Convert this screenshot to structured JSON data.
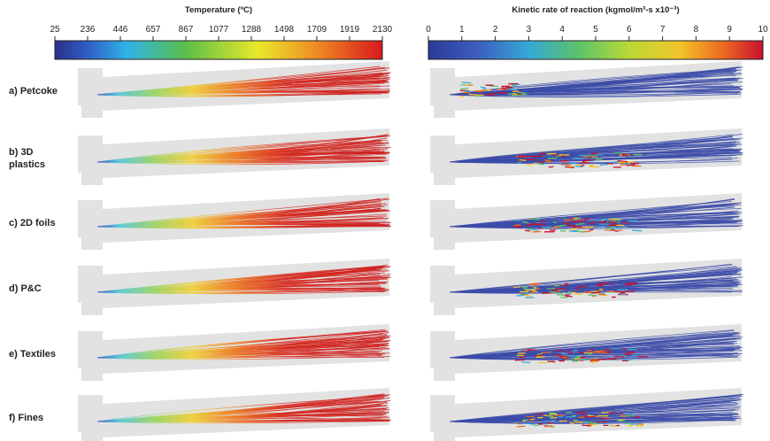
{
  "colorbars": [
    {
      "title": "Temperature (ºC)",
      "ticks": [
        "25",
        "236",
        "446",
        "657",
        "867",
        "1077",
        "1288",
        "1498",
        "1709",
        "1919",
        "2130"
      ]
    },
    {
      "title": "Kinetic rate of reaction (kgmol/m³-s x10⁻³)",
      "ticks": [
        "0",
        "1",
        "2",
        "3",
        "4",
        "5",
        "6",
        "7",
        "8",
        "9",
        "10"
      ]
    }
  ],
  "rows": [
    "a) Petcoke",
    "b) 3D plastics",
    "c) 2D foils",
    "d) P&C",
    "e) Textiles",
    "f) Fines"
  ]
}
